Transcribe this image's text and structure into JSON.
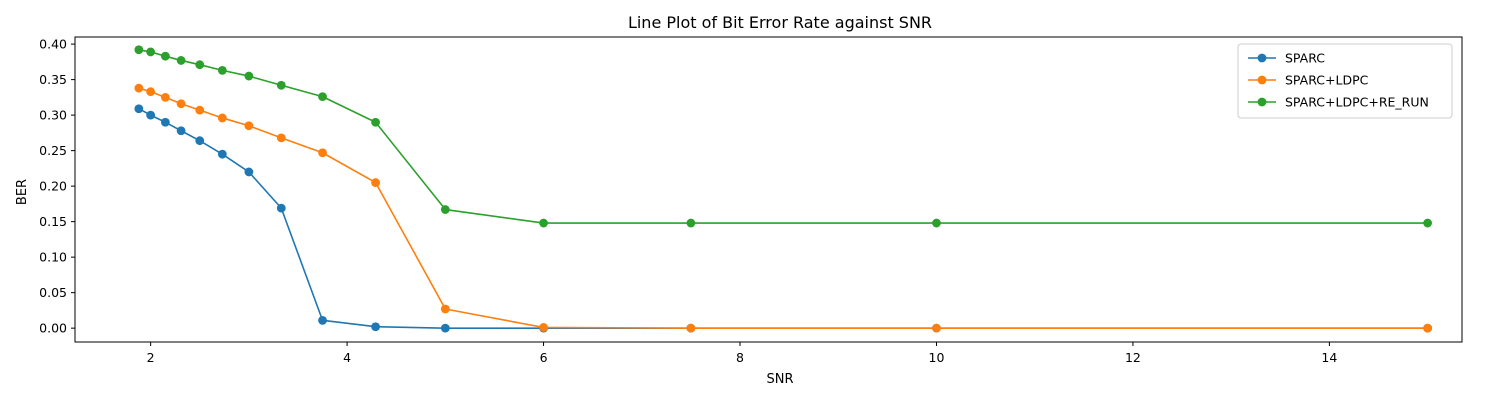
{
  "chart_data": {
    "type": "line",
    "title": "Line Plot of Bit Error Rate against SNR",
    "xlabel": "SNR",
    "ylabel": "BER",
    "xlim": [
      1.23,
      15.35
    ],
    "ylim": [
      -0.0195,
      0.41
    ],
    "xticks": [
      2,
      4,
      6,
      8,
      10,
      12,
      14
    ],
    "yticks": [
      0.0,
      0.05,
      0.1,
      0.15,
      0.2,
      0.25,
      0.3,
      0.35,
      0.4
    ],
    "grid": false,
    "legend_position": "top-right",
    "series": [
      {
        "name": "SPARC",
        "color": "#1f77b4",
        "x": [
          1.88,
          2.0,
          2.15,
          2.31,
          2.5,
          2.73,
          3.0,
          3.33,
          3.75,
          4.29,
          5.0,
          6.0,
          7.5,
          10.0,
          15.0
        ],
        "y": [
          0.309,
          0.3,
          0.29,
          0.278,
          0.264,
          0.245,
          0.22,
          0.169,
          0.011,
          0.002,
          0.0,
          0.0,
          0.0,
          0.0,
          0.0
        ]
      },
      {
        "name": "SPARC+LDPC",
        "color": "#ff7f0e",
        "x": [
          1.88,
          2.0,
          2.15,
          2.31,
          2.5,
          2.73,
          3.0,
          3.33,
          3.75,
          4.29,
          5.0,
          6.0,
          7.5,
          10.0,
          15.0
        ],
        "y": [
          0.338,
          0.333,
          0.325,
          0.316,
          0.307,
          0.296,
          0.285,
          0.268,
          0.247,
          0.205,
          0.027,
          0.001,
          0.0,
          0.0,
          0.0
        ]
      },
      {
        "name": "SPARC+LDPC+RE_RUN",
        "color": "#2ca02c",
        "x": [
          1.88,
          2.0,
          2.15,
          2.31,
          2.5,
          2.73,
          3.0,
          3.33,
          3.75,
          4.29,
          5.0,
          6.0,
          7.5,
          10.0,
          15.0
        ],
        "y": [
          0.392,
          0.389,
          0.383,
          0.377,
          0.371,
          0.363,
          0.355,
          0.342,
          0.326,
          0.29,
          0.167,
          0.148,
          0.148,
          0.148,
          0.148
        ]
      }
    ]
  }
}
